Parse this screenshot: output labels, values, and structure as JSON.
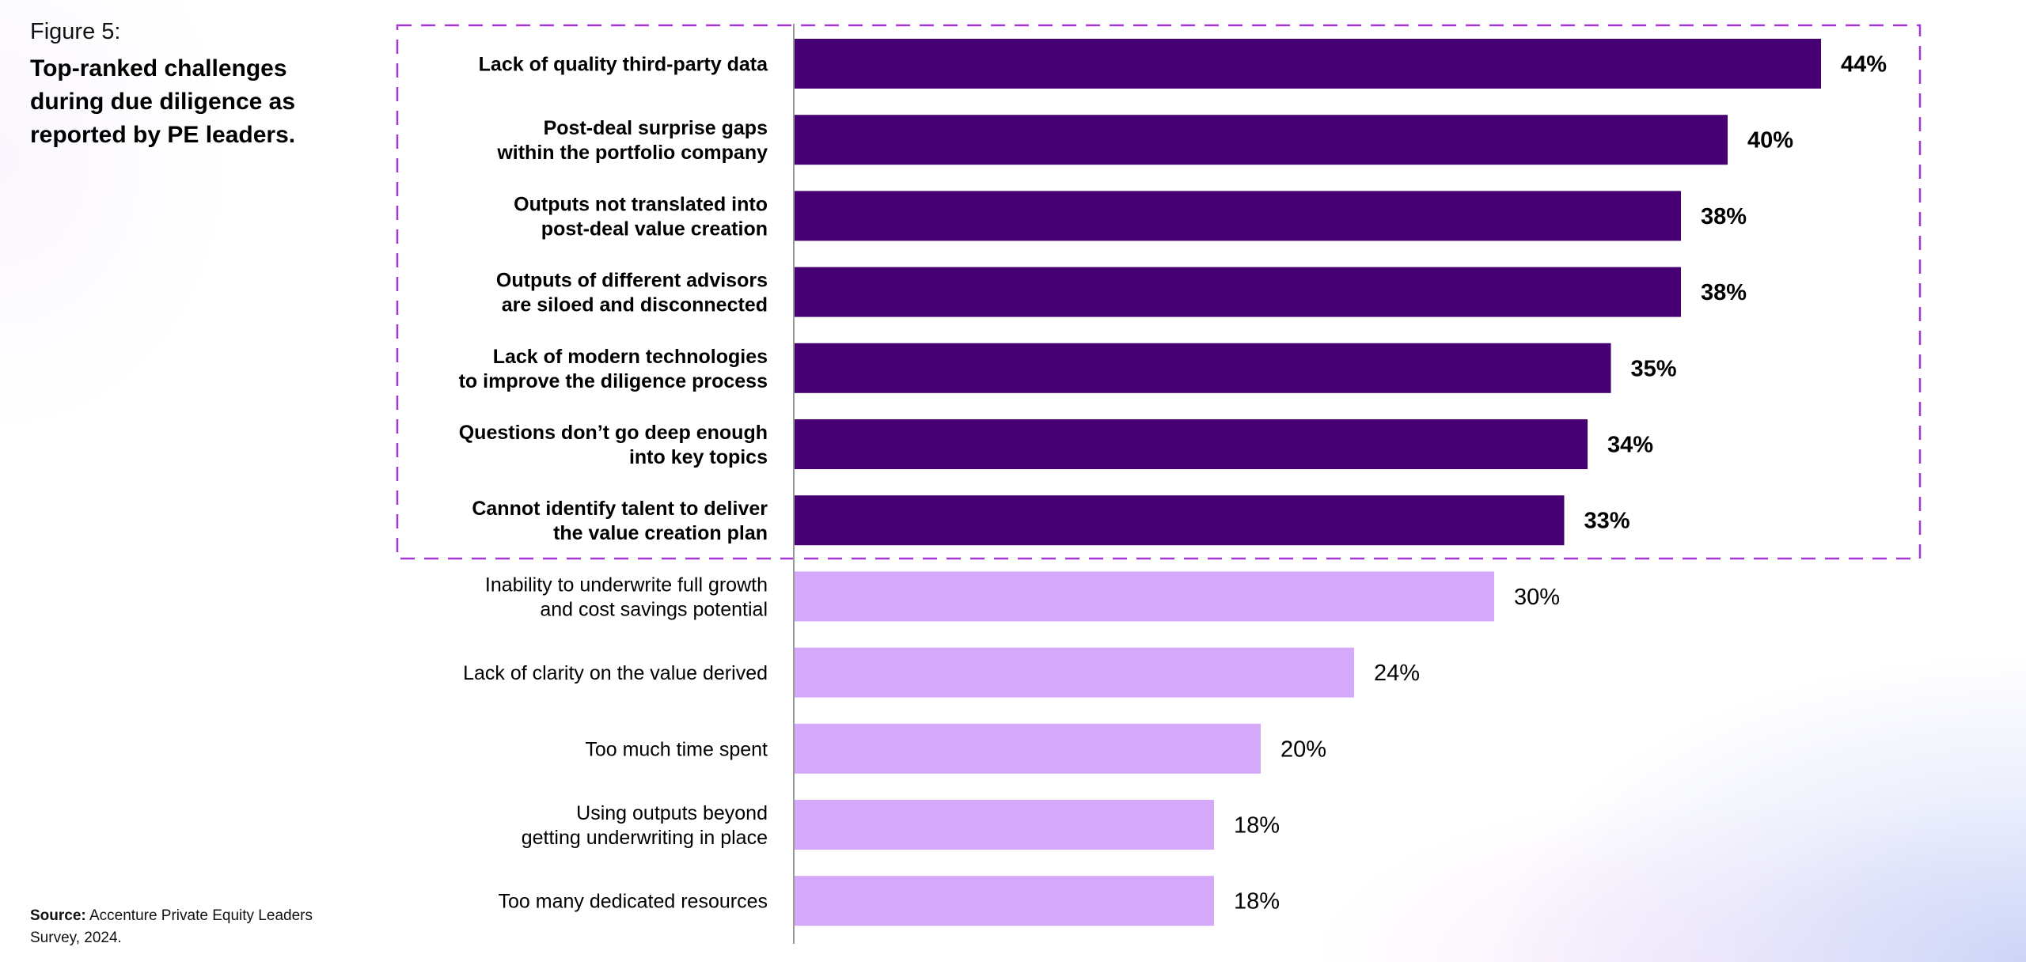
{
  "figure": {
    "number": "Figure 5:",
    "title": "Top-ranked challenges during due diligence as reported by PE leaders.",
    "source_label": "Source:",
    "source_text": "Accenture Private Equity Leaders Survey, 2024."
  },
  "colors": {
    "highlight_bar": "#460073",
    "other_bar": "#D5A9F9",
    "highlight_box": "#A537D6",
    "axis": "#9a9a9a"
  },
  "chart_data": {
    "type": "bar",
    "orientation": "horizontal",
    "title": "Top-ranked challenges during due diligence as reported by PE leaders.",
    "xlabel": "",
    "ylabel": "",
    "xlim": [
      0,
      44
    ],
    "grid": false,
    "highlighted_top_n": 7,
    "categories": [
      [
        "Lack of quality third-party data"
      ],
      [
        "Post-deal surprise gaps",
        "within the portfolio company"
      ],
      [
        "Outputs not translated into",
        "post-deal value creation"
      ],
      [
        "Outputs of different advisors",
        "are siloed and disconnected"
      ],
      [
        "Lack of modern technologies",
        "to improve the diligence process"
      ],
      [
        "Questions don’t go deep enough",
        "into key topics"
      ],
      [
        "Cannot identify talent to deliver",
        "the value creation plan"
      ],
      [
        "Inability to underwrite full growth",
        "and cost savings potential"
      ],
      [
        "Lack of clarity on the value derived"
      ],
      [
        "Too much time spent"
      ],
      [
        "Using outputs beyond",
        "getting underwriting in place"
      ],
      [
        "Too many dedicated resources"
      ]
    ],
    "values": [
      44,
      40,
      38,
      38,
      35,
      34,
      33,
      30,
      24,
      20,
      18,
      18
    ],
    "value_labels": [
      "44%",
      "40%",
      "38%",
      "38%",
      "35%",
      "34%",
      "33%",
      "30%",
      "24%",
      "20%",
      "18%",
      "18%"
    ]
  }
}
